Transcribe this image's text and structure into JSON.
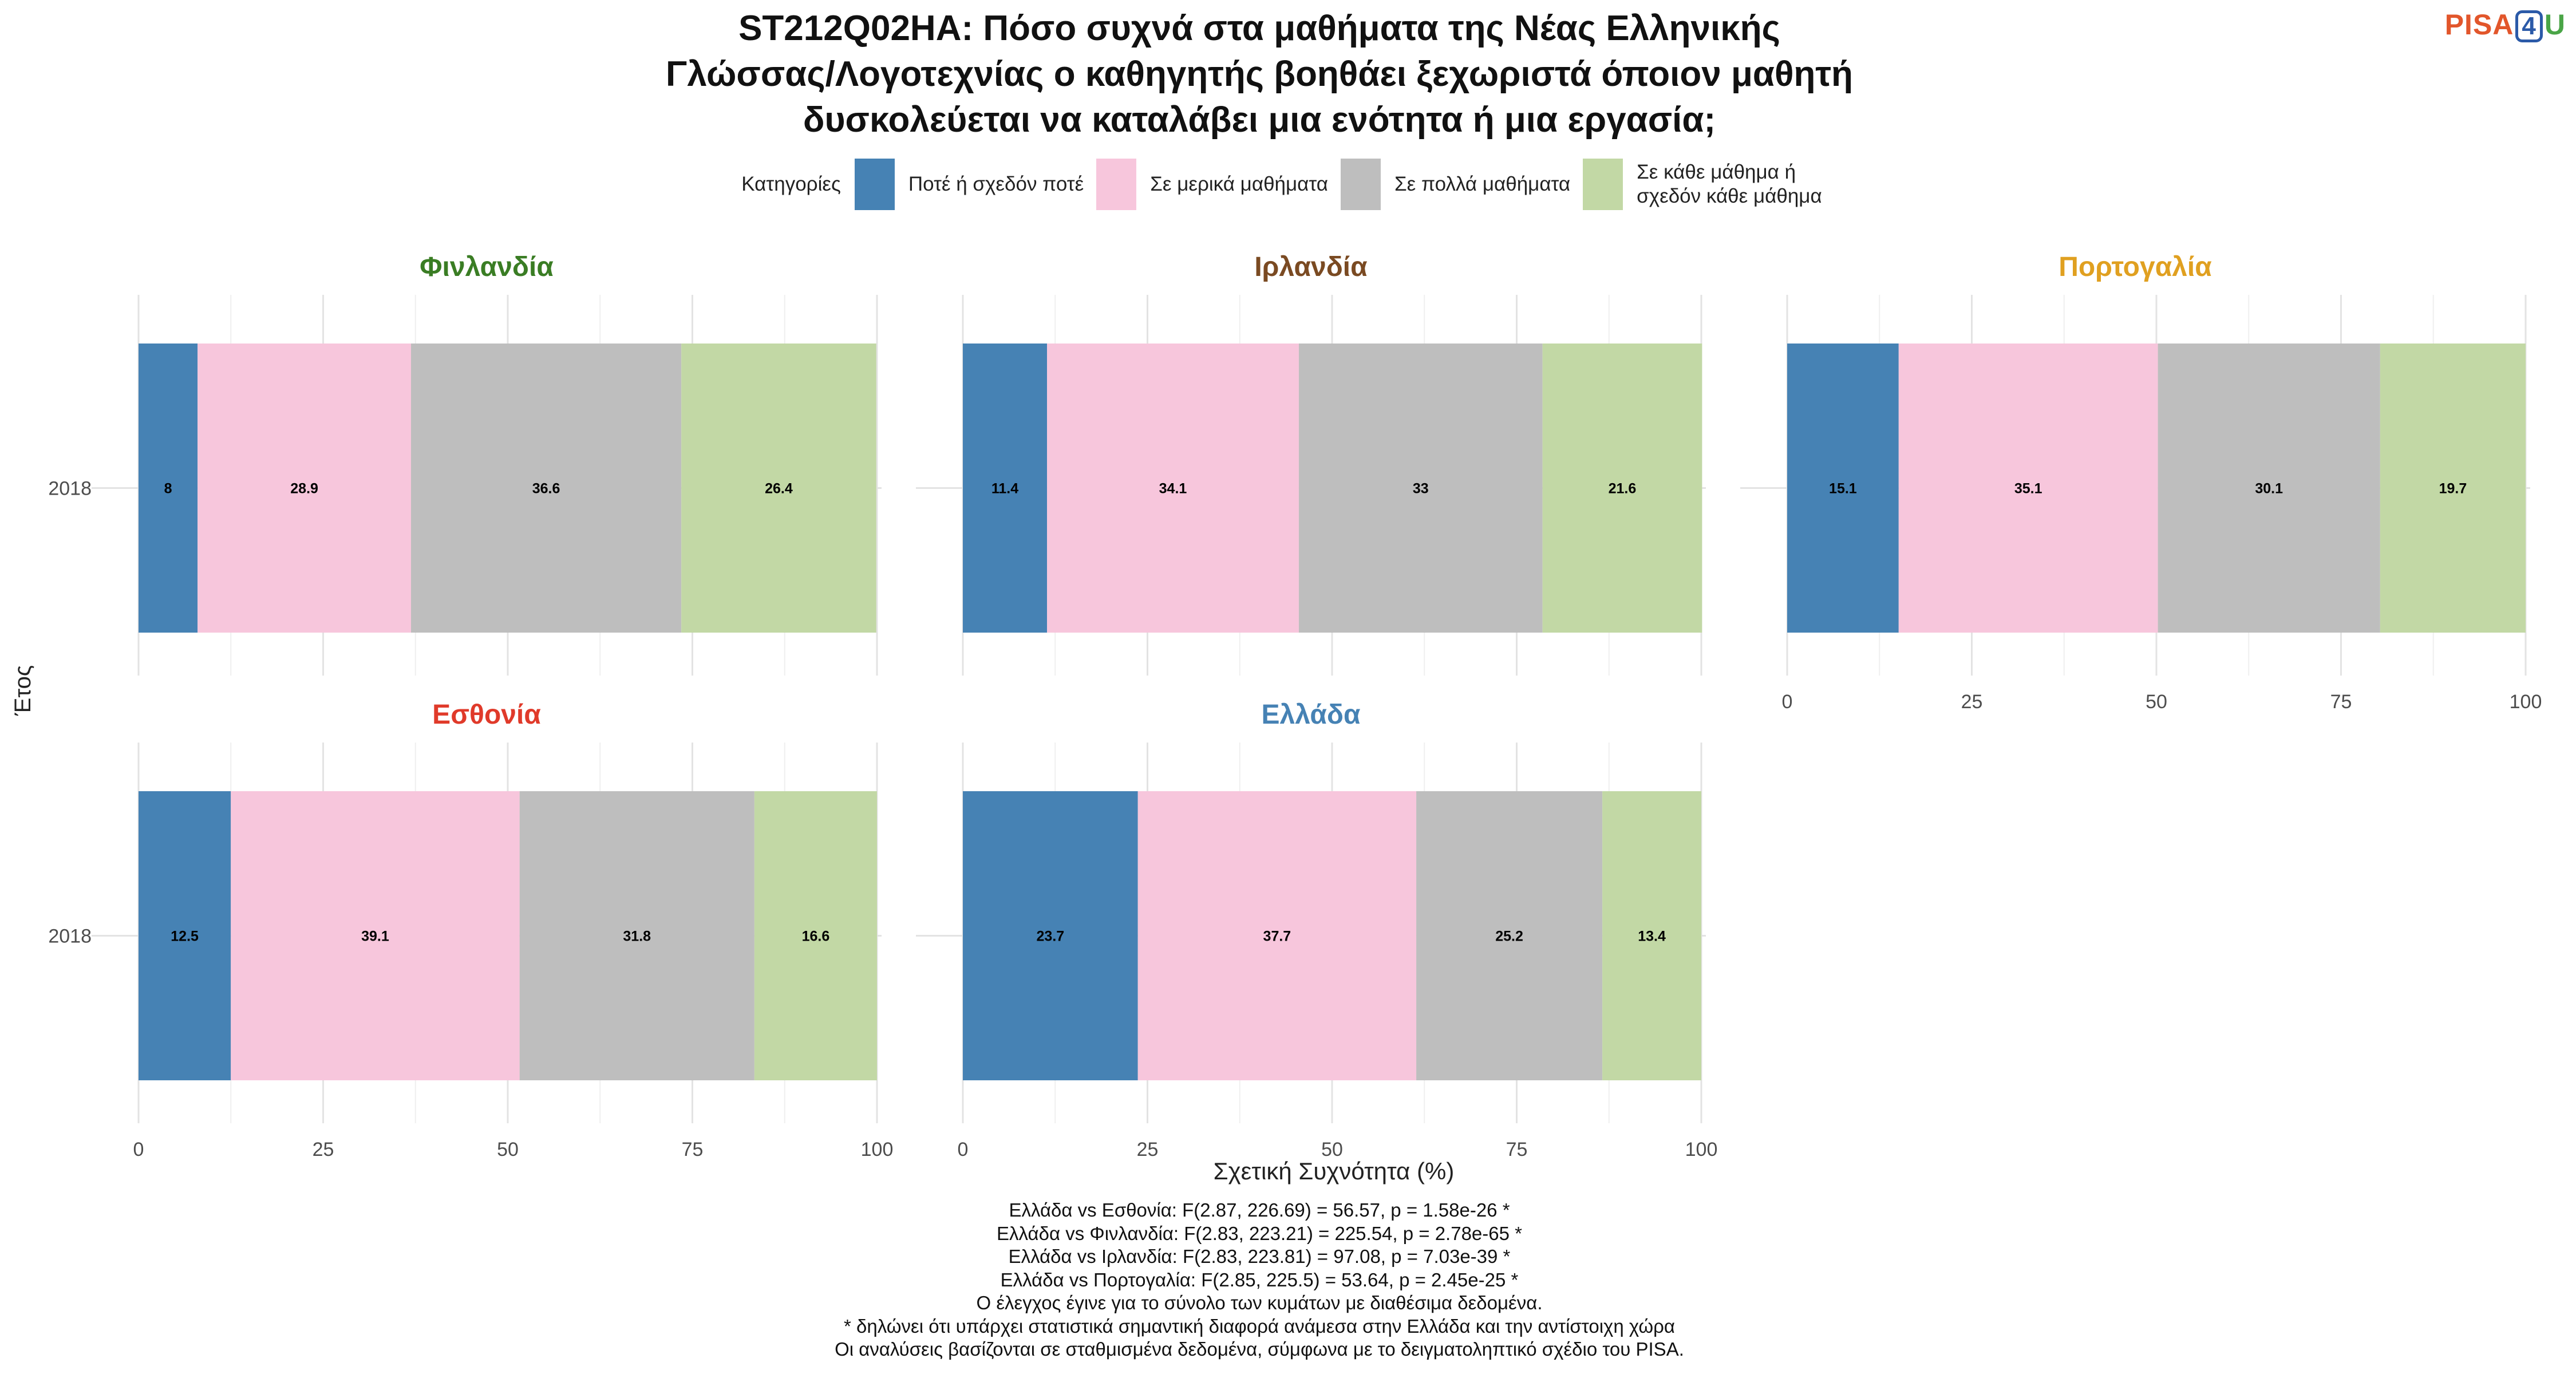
{
  "title_lines": [
    "ST212Q02HA: Πόσο συχνά στα μαθήματα της Νέας Ελληνικής",
    "Γλώσσας/Λογοτεχνίας ο καθηγητής βοηθάει ξεχωριστά όποιον μαθητή",
    "δυσκολεύεται να καταλάβει μια ενότητα ή μια εργασία;"
  ],
  "logo": {
    "pisa": "PISA",
    "four": "4",
    "u": "U"
  },
  "legend": {
    "title": "Κατηγορίες",
    "items": [
      {
        "label": "Ποτέ ή σχεδόν ποτέ",
        "color": "#4682b4"
      },
      {
        "label": "Σε μερικά μαθήματα",
        "color": "#f7c6dc"
      },
      {
        "label": "Σε πολλά μαθήματα",
        "color": "#bebebe"
      },
      {
        "label": "Σε κάθε μάθημα ή\nσχεδόν κάθε μάθημα",
        "color": "#c2d8a5"
      }
    ]
  },
  "chart_data": {
    "type": "bar",
    "orientation": "horizontal",
    "stacked": true,
    "xlabel": "Σχετική Συχνότητα (%)",
    "ylabel": "Έτος",
    "xlim": [
      0,
      100
    ],
    "xticks": [
      0,
      25,
      50,
      75,
      100
    ],
    "categories": [
      "2018"
    ],
    "series_names": [
      "Ποτέ ή σχεδόν ποτέ",
      "Σε μερικά μαθήματα",
      "Σε πολλά μαθήματα",
      "Σε κάθε μάθημα ή σχεδόν κάθε μάθημα"
    ],
    "panels": [
      {
        "name": "Φινλανδία",
        "color": "#3a7d24",
        "values": [
          8,
          28.9,
          36.6,
          26.4
        ],
        "labels": [
          "8",
          "28.9",
          "36.6",
          "26.4"
        ]
      },
      {
        "name": "Ιρλανδία",
        "color": "#7a4a22",
        "values": [
          11.4,
          34.1,
          33,
          21.6
        ],
        "labels": [
          "11.4",
          "34.1",
          "33",
          "21.6"
        ]
      },
      {
        "name": "Πορτογαλία",
        "color": "#e0a020",
        "values": [
          15.1,
          35.1,
          30.1,
          19.7
        ],
        "labels": [
          "15.1",
          "35.1",
          "30.1",
          "19.7"
        ]
      },
      {
        "name": "Εσθονία",
        "color": "#e03a2a",
        "values": [
          12.5,
          39.1,
          31.8,
          16.6
        ],
        "labels": [
          "12.5",
          "39.1",
          "31.8",
          "16.6"
        ]
      },
      {
        "name": "Ελλάδα",
        "color": "#4682b4",
        "values": [
          23.7,
          37.7,
          25.2,
          13.4
        ],
        "labels": [
          "23.7",
          "37.7",
          "25.2",
          "13.4"
        ]
      }
    ],
    "grid": true,
    "legend_position": "top"
  },
  "notes": [
    "Ελλάδα vs Εσθονία: F(2.87, 226.69) = 56.57, p = 1.58e-26 *",
    "Ελλάδα vs Φινλανδία: F(2.83, 223.21) = 225.54, p = 2.78e-65 *",
    "Ελλάδα vs Ιρλανδία: F(2.83, 223.81) = 97.08, p = 7.03e-39 *",
    "Ελλάδα vs Πορτογαλία: F(2.85, 225.5) = 53.64, p = 2.45e-25 *",
    "Ο έλεγχος έγινε για το σύνολο των κυμάτων με διαθέσιμα δεδομένα.",
    "* δηλώνει ότι υπάρχει στατιστικά σημαντική διαφορά ανάμεσα στην Ελλάδα και την αντίστοιχη χώρα",
    "Οι αναλύσεις βασίζονται σε σταθμισμένα δεδομένα, σύμφωνα με το δειγματοληπτικό σχέδιο του PISA."
  ]
}
